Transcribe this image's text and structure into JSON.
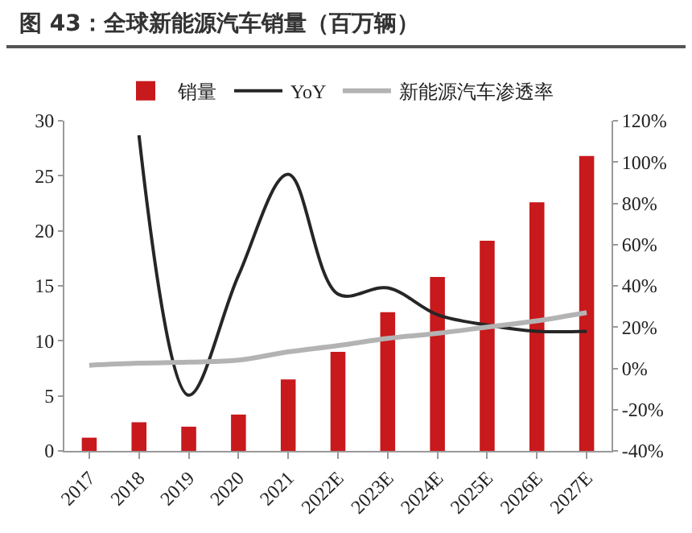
{
  "chart_data": {
    "type": "bar",
    "title": "图 43：全球新能源汽车销量（百万辆）",
    "categories": [
      "2017",
      "2018",
      "2019",
      "2020",
      "2021",
      "2022E",
      "2023E",
      "2024E",
      "2025E",
      "2026E",
      "2027E"
    ],
    "series": [
      {
        "name": "销量",
        "color": "#c8191c",
        "values": [
          1.2,
          2.6,
          2.2,
          3.3,
          6.5,
          9.0,
          12.6,
          15.8,
          19.1,
          22.6,
          26.8
        ]
      },
      {
        "name": "YoY",
        "type": "line",
        "axis": "y2",
        "color": "#262626",
        "values": [
          null,
          113,
          -13,
          45,
          94,
          36,
          39,
          26,
          21,
          18,
          18
        ]
      },
      {
        "name": "新能源汽车渗透率",
        "type": "line",
        "axis": "y2",
        "color": "#b3b3b3",
        "values": [
          1.5,
          2.5,
          3,
          4,
          8,
          11,
          14.5,
          17,
          20,
          23,
          27
        ]
      }
    ],
    "ylim": [
      0,
      30
    ],
    "yticks": [
      0,
      5,
      10,
      15,
      20,
      25,
      30
    ],
    "y2lim": [
      -40,
      120
    ],
    "y2ticks": [
      {
        "value": -40,
        "label": "-40%"
      },
      {
        "value": -20,
        "label": "-20%"
      },
      {
        "value": 0,
        "label": "0%"
      },
      {
        "value": 20,
        "label": "20%"
      },
      {
        "value": 40,
        "label": "40%"
      },
      {
        "value": 60,
        "label": "60%"
      },
      {
        "value": 80,
        "label": "80%"
      },
      {
        "value": 100,
        "label": "100%"
      },
      {
        "value": 120,
        "label": "120%"
      }
    ],
    "grid": false,
    "legend": "top"
  }
}
